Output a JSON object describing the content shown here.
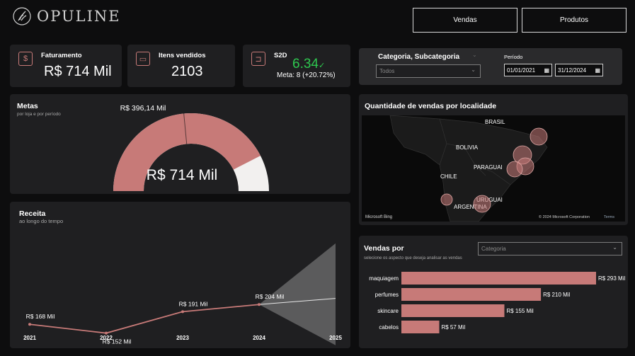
{
  "brand": {
    "name": "OPULINE",
    "icon": "wheat-leaf-icon"
  },
  "nav": {
    "vendas": "Vendas",
    "produtos": "Produtos"
  },
  "kpis": {
    "faturamento": {
      "title": "Faturamento",
      "value": "R$ 714 Mil",
      "icon": "money-icon"
    },
    "itens": {
      "title": "Itens vendidos",
      "value": "2103",
      "icon": "cart-icon"
    },
    "s2d": {
      "title": "S2D",
      "value": "6.34",
      "check": "✓",
      "meta": "Meta: 8 (+20.72%)",
      "icon": "dolly-icon"
    }
  },
  "filters": {
    "category_label": "Categoria, Subcategoria",
    "category_value": "Todos",
    "period_label": "Período",
    "date_start": "01/01/2021",
    "date_end": "31/12/2024"
  },
  "metas": {
    "title": "Metas",
    "subtitle": "por loja e por período",
    "target_label": "R$ 396,14 Mil",
    "value": "R$ 714 Mil",
    "fill_fraction": 0.85,
    "target_fraction": 0.47
  },
  "map": {
    "title": "Quantidade de vendas por localidade",
    "labels": {
      "brasil": "BRASIL",
      "bolivia": "BOLIVIA",
      "paraguai": "PARAGUAI",
      "chile": "CHILE",
      "uruguai": "URUGUAI",
      "argentina": "ARGENTINA"
    },
    "attribution_left": "Microsoft Bing",
    "attribution_right": "© 2024 Microsoft Corporation",
    "terms": "Terms"
  },
  "receita": {
    "title": "Receita",
    "subtitle": "ao longo do tempo",
    "chart_data": {
      "type": "line",
      "categories": [
        "2021",
        "2022",
        "2023",
        "2024",
        "2025"
      ],
      "values": [
        168,
        152,
        191,
        204,
        null
      ],
      "labels": [
        "R$ 168 Mil",
        "R$ 152 Mil",
        "R$ 191 Mil",
        "R$ 204 Mil",
        ""
      ],
      "forecast": {
        "from": "2024",
        "to": "2025",
        "low": 130,
        "mid": 215,
        "high": 315
      },
      "ylim": [
        140,
        320
      ]
    }
  },
  "vendas_por": {
    "title": "Vendas por",
    "subtitle": "selecione os aspecto que deseja analisar as vendas",
    "dropdown_placeholder": "Categoria",
    "chart_data": {
      "type": "bar",
      "orientation": "horizontal",
      "categories": [
        "maquiagem",
        "perfumes",
        "skincare",
        "cabelos"
      ],
      "values": [
        293,
        210,
        155,
        57
      ],
      "labels": [
        "R$ 293 Mil",
        "R$ 210 Mil",
        "R$ 155 Mil",
        "R$ 57 Mil"
      ],
      "xlim": [
        0,
        293
      ]
    }
  },
  "colors": {
    "accent": "#c77a78",
    "card": "#1f1f21",
    "bg": "#0d0d0e",
    "positive": "#2ec84f"
  }
}
